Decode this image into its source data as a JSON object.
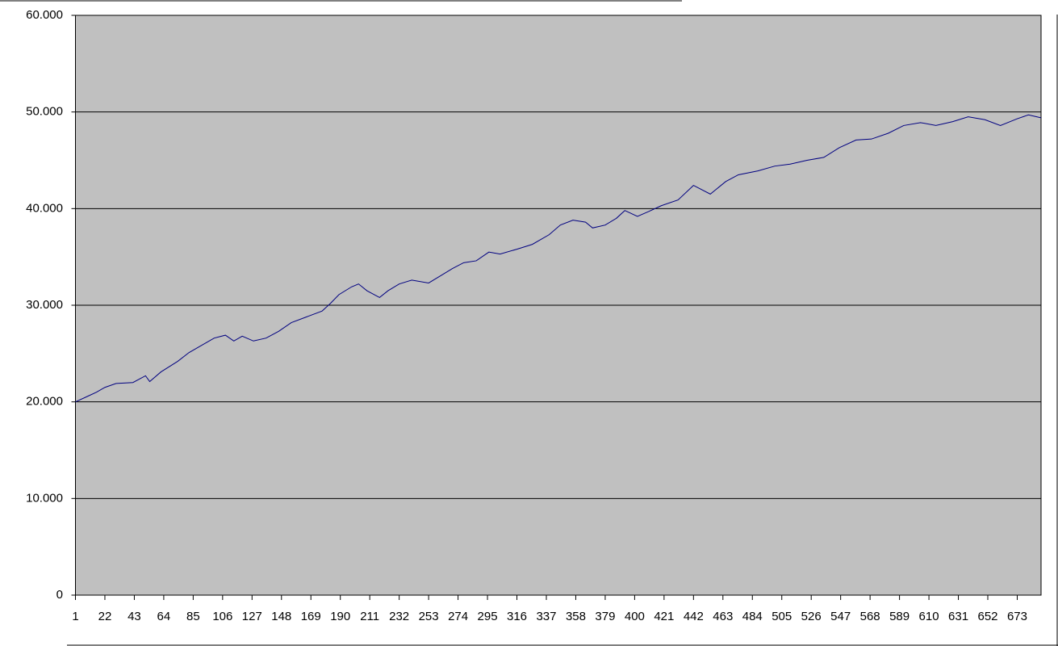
{
  "chart_data": {
    "type": "line",
    "color": "#000080",
    "grid": true,
    "plot_background": "#c0c0c0",
    "x": [
      1,
      10,
      16,
      22,
      30,
      42,
      51,
      54,
      62,
      74,
      82,
      94,
      100,
      108,
      114,
      120,
      128,
      137,
      146,
      155,
      166,
      177,
      183,
      189,
      198,
      203,
      209,
      218,
      224,
      232,
      241,
      253,
      261,
      270,
      278,
      287,
      296,
      304,
      316,
      327,
      339,
      347,
      356,
      365,
      370,
      379,
      387,
      393,
      402,
      410,
      419,
      431,
      442,
      454,
      465,
      474,
      488,
      500,
      511,
      523,
      535,
      546,
      558,
      569,
      581,
      592,
      604,
      615,
      627,
      638,
      650,
      661,
      673,
      681,
      690
    ],
    "values": [
      20000,
      20600,
      21000,
      21500,
      21900,
      22000,
      22700,
      22100,
      23100,
      24200,
      25100,
      26100,
      26600,
      26900,
      26300,
      26800,
      26300,
      26600,
      27300,
      28200,
      28800,
      29400,
      30200,
      31100,
      31900,
      32200,
      31500,
      30800,
      31500,
      32200,
      32600,
      32300,
      33000,
      33800,
      34400,
      34600,
      35500,
      35300,
      35800,
      36300,
      37300,
      38300,
      38800,
      38600,
      38000,
      38300,
      39000,
      39800,
      39200,
      39700,
      40300,
      40900,
      42400,
      41500,
      42800,
      43500,
      43900,
      44400,
      44600,
      45000,
      45300,
      46300,
      47100,
      47200,
      47800,
      48600,
      48900,
      48600,
      49000,
      49500,
      49200,
      48600,
      49300,
      49700,
      49400
    ],
    "xlim": [
      1,
      690
    ],
    "xticks": [
      1,
      22,
      43,
      64,
      85,
      106,
      127,
      148,
      169,
      190,
      211,
      232,
      253,
      274,
      295,
      316,
      337,
      358,
      379,
      400,
      421,
      442,
      463,
      484,
      505,
      526,
      547,
      568,
      589,
      610,
      631,
      652,
      673
    ],
    "ylim": [
      0,
      60000
    ],
    "yticks": [
      0,
      {
        "value": 10000,
        "label": "10.000"
      },
      {
        "value": 20000,
        "label": "20.000"
      },
      {
        "value": 30000,
        "label": "30.000"
      },
      {
        "value": 40000,
        "label": "40.000"
      },
      {
        "value": 50000,
        "label": "50.000"
      },
      {
        "value": 60000,
        "label": "60.000"
      }
    ]
  }
}
